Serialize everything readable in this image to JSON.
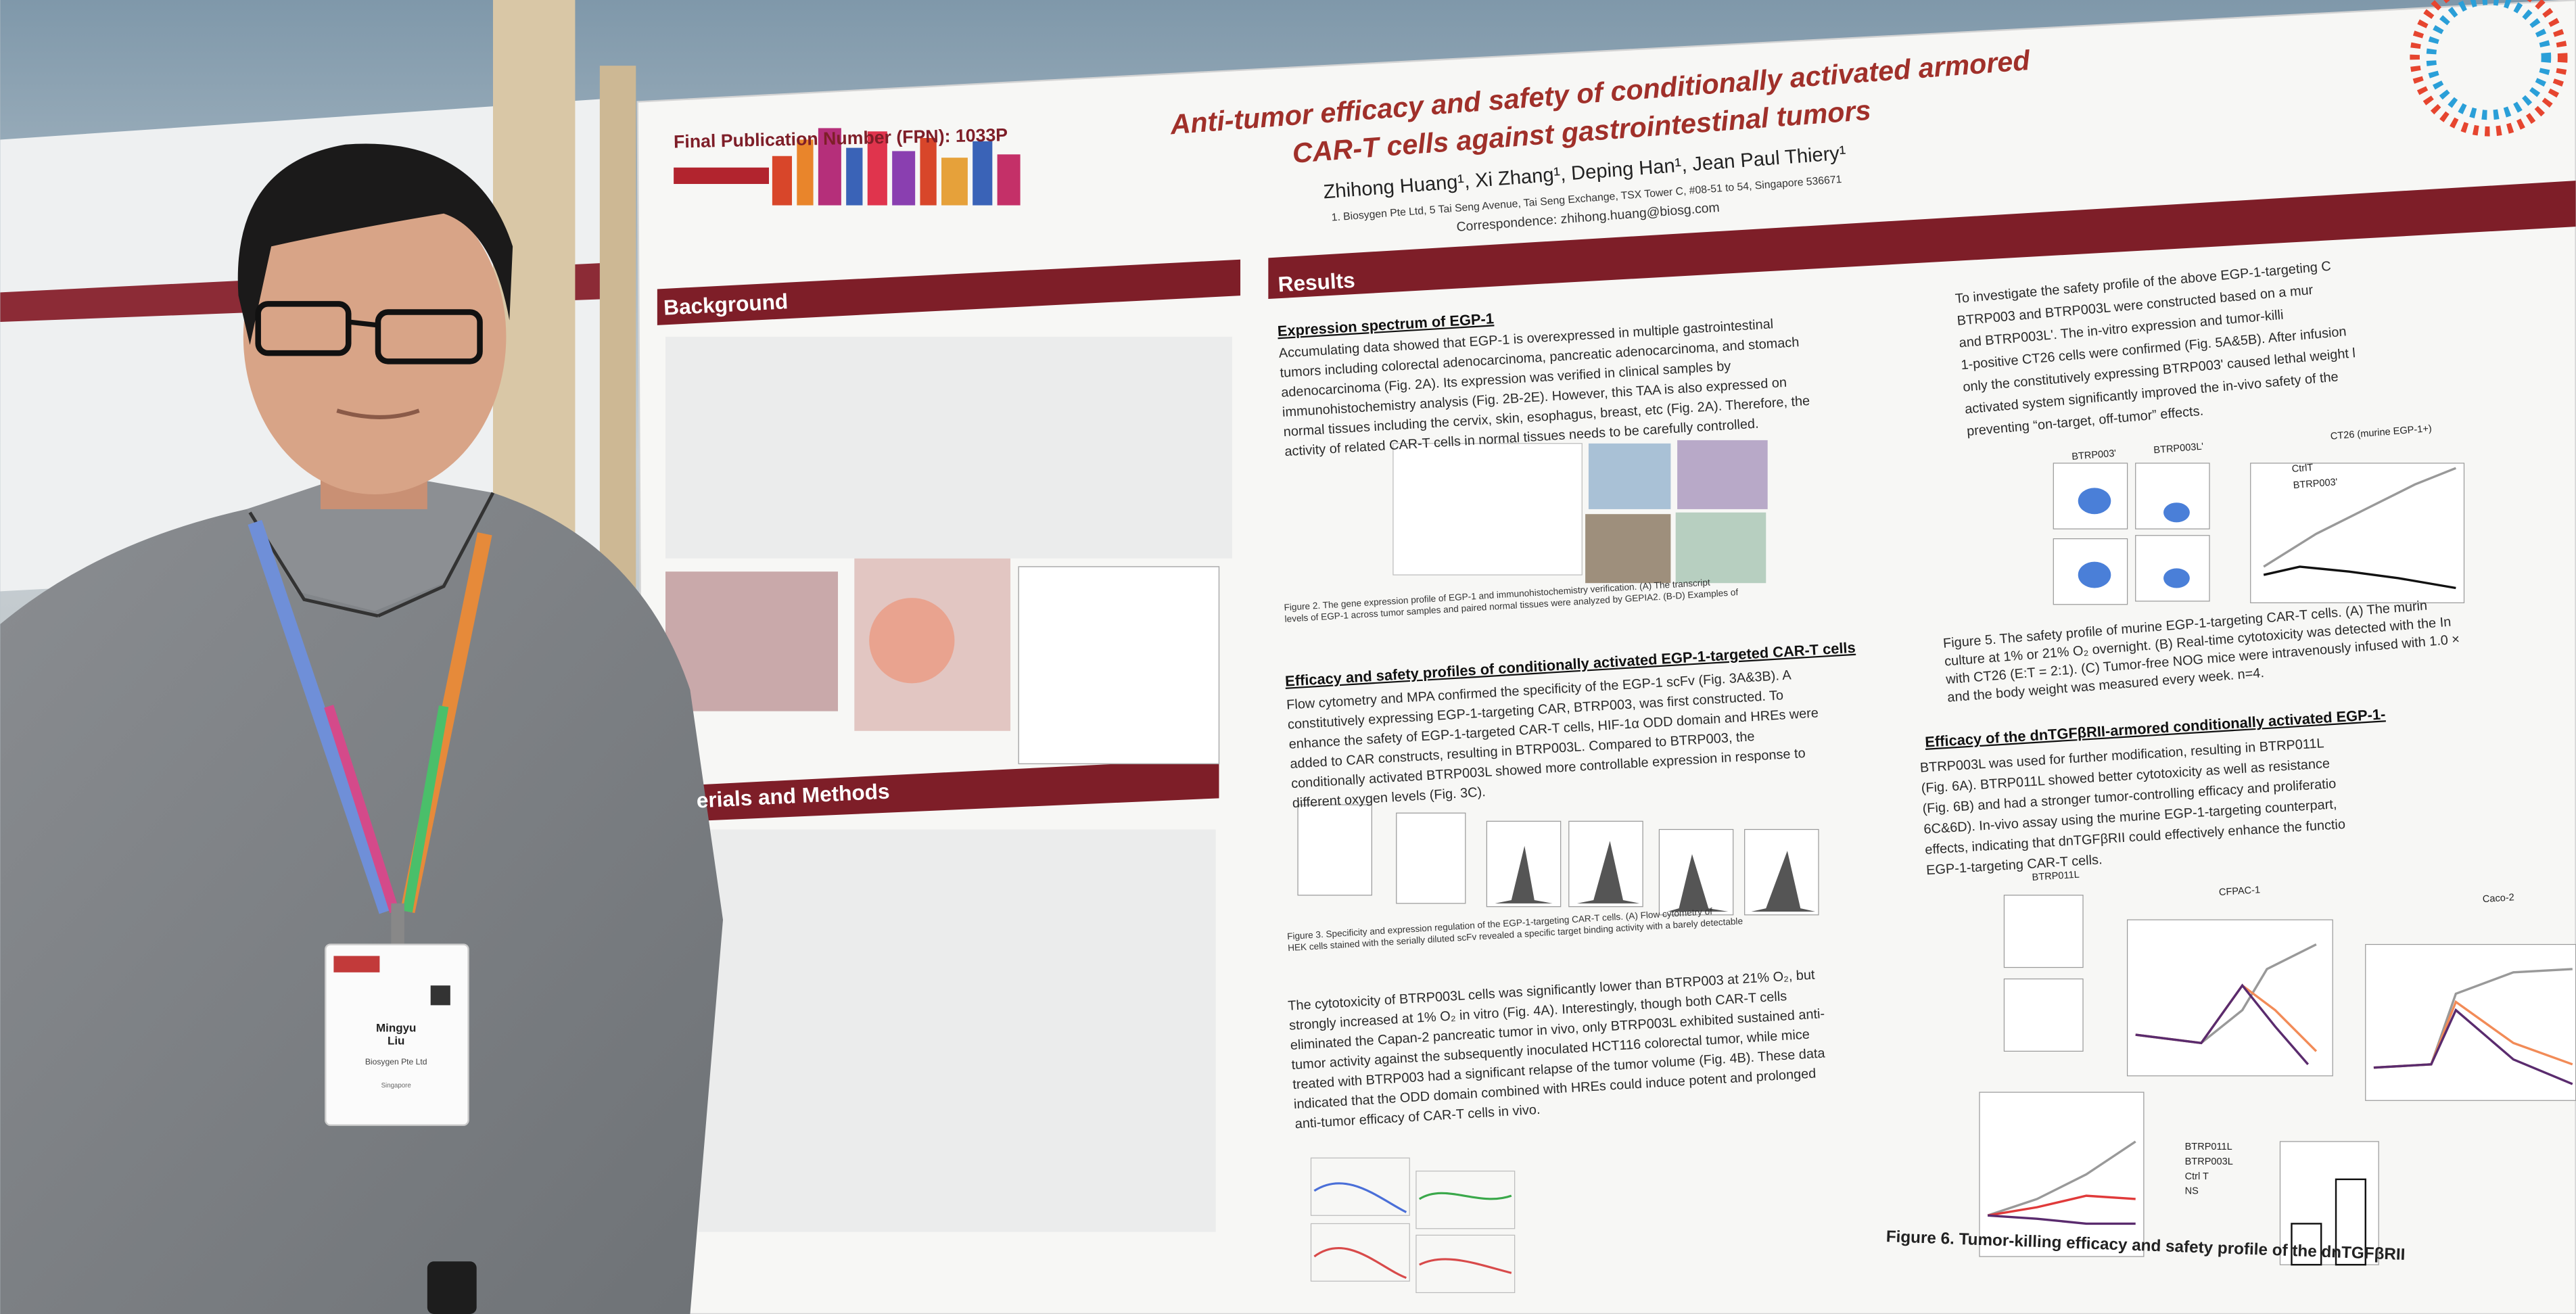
{
  "poster": {
    "fpn": "Final Publication Number (FPN): 1033P",
    "title": [
      "Anti-tumor efficacy and safety of conditionally activated armored",
      "CAR-T cells against gastrointestinal tumors"
    ],
    "authors": "Zhihong Huang¹, Xi Zhang¹, Deping Han¹, Jean Paul Thiery¹",
    "affiliation": "1. Biosygen Pte Ltd, 5 Tai Seng Avenue, Tai Seng Exchange, TSX Tower C, #08-51 to 54, Singapore 536671",
    "correspondence": "Correspondence: zhihong.huang@biosg.com",
    "background_heading": "Background",
    "methods_heading": "erials and Methods",
    "results_heading": "Results",
    "expression": {
      "heading": "Expression spectrum of EGP-1",
      "text": [
        "Accumulating data showed that EGP-1 is overexpressed in multiple gastrointestinal",
        "tumors including colorectal adenocarcinoma, pancreatic adenocarcinoma, and stomach",
        "adenocarcinoma (Fig. 2A). Its expression was verified in clinical samples by",
        "immunohistochemistry analysis (Fig. 2B-2E). However, this TAA is also expressed on",
        "normal tissues including the cervix, skin, esophagus, breast, etc (Fig. 2A). Therefore, the",
        "activity of related CAR-T cells in normal tissues needs to be carefully controlled."
      ],
      "caption": [
        "Figure 2. The gene expression profile of EGP-1 and immunohistochemistry verification. (A) The transcript",
        "levels of EGP-1 across tumor samples and paired normal tissues were analyzed by GEPIA2. (B-D) Examples of"
      ]
    },
    "efficacy": {
      "heading": "Efficacy and safety profiles of conditionally activated EGP-1-targeted CAR-T cells",
      "text": [
        "Flow cytometry and MPA confirmed the specificity of the EGP-1 scFv (Fig. 3A&3B). A",
        "constitutively expressing EGP-1-targeting CAR, BTRP003, was first constructed. To",
        "enhance the safety of EGP-1-targeted CAR-T cells, HIF-1α ODD domain and HREs were",
        "added to CAR constructs, resulting in BTRP003L. Compared to BTRP003, the",
        "conditionally activated BTRP003L showed more controllable expression in response to",
        "different oxygen levels (Fig. 3C)."
      ],
      "caption": [
        "Figure 3. Specificity and expression regulation of the EGP-1-targeting CAR-T cells. (A) Flow cytometry of",
        "HEK cells stained with the serially diluted scFv revealed a specific target binding activity with a barely detectable"
      ],
      "text2": [
        "The cytotoxicity of BTRP003L cells was significantly lower than BTRP003 at 21% O₂, but",
        "strongly increased at 1% O₂ in vitro (Fig. 4A). Interestingly, though both CAR-T cells",
        "eliminated the Capan-2 pancreatic tumor in vivo, only BTRP003L exhibited sustained anti-",
        "tumor activity against the subsequently inoculated HCT116 colorectal tumor, while mice",
        "treated with BTRP003 had a significant relapse of the tumor volume (Fig. 4B). These data",
        "indicated that the ODD domain combined with HREs could induce potent and prolonged",
        "anti-tumor efficacy of CAR-T cells in vivo."
      ]
    },
    "safety": {
      "text": [
        "To investigate the safety profile of the above EGP-1-targeting C",
        "BTRP003 and BTRP003L were constructed based on a mur",
        "and BTRP003L'. The in-vitro expression and tumor-killi",
        "1-positive CT26 cells were confirmed (Fig. 5A&5B). After infusion",
        "only the constitutively expressing BTRP003' caused lethal weight l",
        "activated system significantly improved the in-vivo safety of the",
        "preventing “on-target, off-tumor” effects."
      ],
      "fig_labels": [
        "BTRP003'",
        "BTRP003L'",
        "CT26 (murine EGP-1+)",
        "CtrlT",
        "BTRP003'"
      ],
      "caption": [
        "Figure 5. The safety profile of murine EGP-1-targeting CAR-T cells. (A) The murin",
        "culture at 1% or 21% O₂ overnight. (B) Real-time cytotoxicity was detected with the In",
        "with CT26 (E:T = 2:1). (C) Tumor-free NOG mice were intravenously infused with 1.0 ×",
        "and the body weight was measured every week. n=4."
      ]
    },
    "armored": {
      "heading": "Efficacy of the dnTGFβRII-armored conditionally activated EGP-1-",
      "text": [
        "BTRP003L was used for further modification, resulting in BTRP011L",
        "(Fig. 6A). BTRP011L showed better cytotoxicity as well as resistance",
        "(Fig. 6B) and had a stronger tumor-controlling efficacy and proliferatio",
        "6C&6D). In-vivo assay using the murine EGP-1-targeting counterpart,",
        "effects, indicating that dnTGFβRII could effectively enhance the functio",
        "EGP-1-targeting CAR-T cells."
      ],
      "fig_labels": [
        "BTRP011L",
        "CFPAC-1",
        "Caco-2"
      ],
      "legend": [
        "BTRP011L",
        "BTRP003L",
        "Ctrl T",
        "NS"
      ],
      "caption": "Figure 6. Tumor-killing efficacy and safety profile of the dnTGFβRII"
    }
  },
  "badge": {
    "name": [
      "Mingyu",
      "Liu"
    ],
    "company": "Biosygen Pte Ltd",
    "country": "Singapore"
  }
}
